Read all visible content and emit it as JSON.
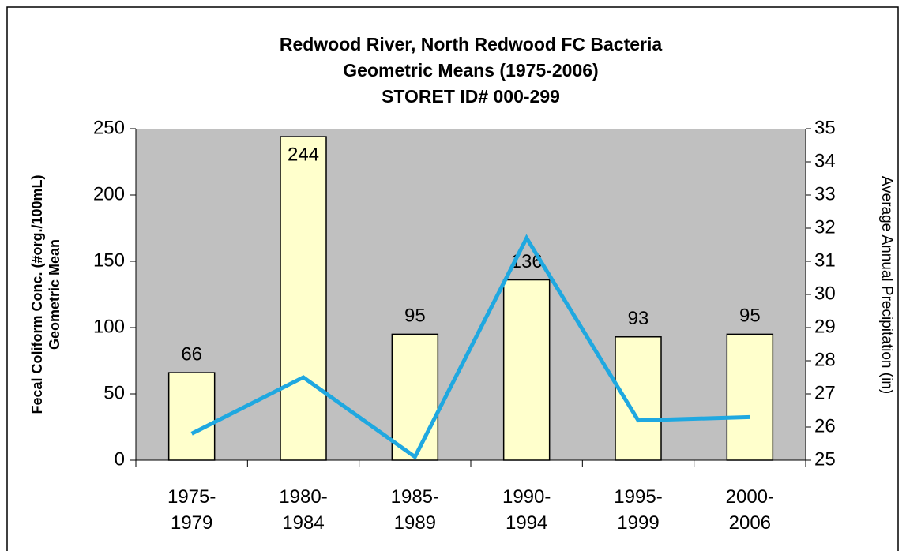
{
  "chart_data": {
    "type": "bar",
    "title": [
      "Redwood River, North Redwood FC Bacteria",
      "Geometric Means (1975-2006)",
      "STORET ID# 000-299"
    ],
    "ylabel": [
      "Fecal Coliform Conc. (#org./100mL)",
      "Geometric Mean"
    ],
    "y2label": "Average Annual Precipitation (in)",
    "categories": [
      "1975-1979",
      "1980-1984",
      "1985-1989",
      "1990-1994",
      "1995-1999",
      "2000-2006"
    ],
    "series": [
      {
        "type": "bar",
        "color": "#ffffcc",
        "values": [
          66,
          244,
          95,
          136,
          93,
          95
        ]
      },
      {
        "type": "line",
        "color": "#1fa8e0",
        "axis": "y2",
        "values": [
          25.8,
          27.5,
          25.1,
          31.7,
          26.2,
          26.3
        ]
      }
    ],
    "ylim": [
      0,
      250
    ],
    "yticks": [
      0,
      50,
      100,
      150,
      200,
      250
    ],
    "y2lim": [
      25,
      35
    ],
    "y2ticks": [
      25,
      26,
      27,
      28,
      29,
      30,
      31,
      32,
      33,
      34,
      35
    ],
    "grid": false,
    "plot_background": "#c0c0c0"
  }
}
